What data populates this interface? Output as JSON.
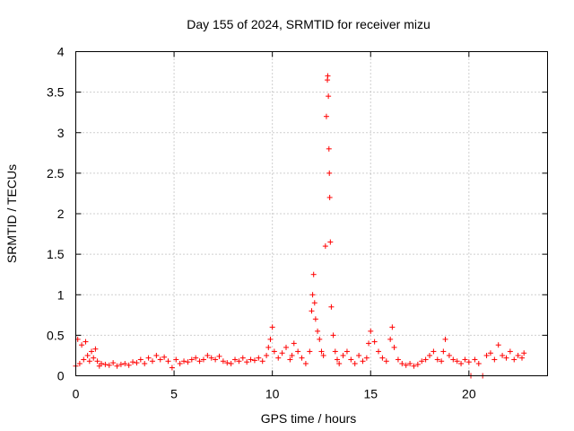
{
  "chart_data": {
    "type": "scatter",
    "title": "Day 155 of 2024, SRMTID for receiver mizu",
    "xlabel": "GPS time / hours",
    "ylabel": "SRMTID / TECUs",
    "xlim": [
      0,
      24
    ],
    "ylim": [
      0,
      4
    ],
    "x_ticks": [
      0,
      5,
      10,
      15,
      20
    ],
    "x_tick_labels": [
      "0",
      "5",
      "10",
      "15",
      "20"
    ],
    "y_ticks": [
      0,
      0.5,
      1,
      1.5,
      2,
      2.5,
      3,
      3.5,
      4
    ],
    "y_tick_labels": [
      "0",
      "0.5",
      "1",
      "1.5",
      "2",
      "2.5",
      "3",
      "3.5",
      "4"
    ],
    "grid": true,
    "marker": "+",
    "color": "#ff0000",
    "series": [
      {
        "name": "SRMTID",
        "x": [
          0.0,
          0.1,
          0.2,
          0.3,
          0.4,
          0.5,
          0.6,
          0.7,
          0.8,
          0.9,
          1.0,
          1.1,
          1.2,
          1.3,
          1.5,
          1.7,
          1.9,
          2.1,
          2.3,
          2.5,
          2.7,
          2.9,
          3.1,
          3.3,
          3.5,
          3.7,
          3.9,
          4.1,
          4.3,
          4.5,
          4.7,
          4.9,
          5.1,
          5.3,
          5.5,
          5.7,
          5.9,
          6.1,
          6.3,
          6.5,
          6.7,
          6.9,
          7.1,
          7.3,
          7.5,
          7.7,
          7.9,
          8.1,
          8.3,
          8.5,
          8.7,
          8.9,
          9.1,
          9.3,
          9.5,
          9.7,
          9.8,
          9.9,
          10.0,
          10.1,
          10.3,
          10.5,
          10.7,
          10.9,
          11.0,
          11.1,
          11.3,
          11.5,
          11.7,
          11.9,
          12.0,
          12.05,
          12.1,
          12.15,
          12.2,
          12.3,
          12.4,
          12.5,
          12.6,
          12.7,
          12.75,
          12.8,
          12.82,
          12.85,
          12.88,
          12.9,
          12.92,
          12.95,
          13.0,
          13.1,
          13.2,
          13.3,
          13.4,
          13.6,
          13.8,
          14.0,
          14.2,
          14.4,
          14.6,
          14.8,
          14.9,
          15.0,
          15.2,
          15.4,
          15.6,
          15.8,
          16.0,
          16.1,
          16.2,
          16.4,
          16.6,
          16.8,
          17.0,
          17.2,
          17.4,
          17.6,
          17.8,
          18.0,
          18.2,
          18.4,
          18.6,
          18.7,
          18.8,
          19.0,
          19.2,
          19.4,
          19.6,
          19.8,
          20.0,
          20.1,
          20.3,
          20.5,
          20.7,
          20.9,
          21.1,
          21.3,
          21.5,
          21.7,
          21.9,
          22.1,
          22.3,
          22.5,
          22.7,
          22.8
        ],
        "y": [
          0.12,
          0.45,
          0.15,
          0.38,
          0.2,
          0.42,
          0.25,
          0.18,
          0.3,
          0.22,
          0.33,
          0.18,
          0.12,
          0.15,
          0.14,
          0.13,
          0.16,
          0.12,
          0.14,
          0.15,
          0.13,
          0.17,
          0.16,
          0.2,
          0.15,
          0.22,
          0.18,
          0.25,
          0.2,
          0.23,
          0.18,
          0.1,
          0.2,
          0.15,
          0.18,
          0.17,
          0.2,
          0.22,
          0.18,
          0.2,
          0.25,
          0.22,
          0.2,
          0.24,
          0.18,
          0.16,
          0.15,
          0.2,
          0.18,
          0.22,
          0.17,
          0.2,
          0.19,
          0.22,
          0.18,
          0.25,
          0.35,
          0.45,
          0.6,
          0.3,
          0.22,
          0.28,
          0.35,
          0.2,
          0.25,
          0.4,
          0.3,
          0.22,
          0.15,
          0.3,
          0.8,
          1.0,
          1.25,
          0.9,
          0.7,
          0.55,
          0.45,
          0.3,
          0.25,
          1.6,
          3.2,
          3.65,
          3.7,
          3.45,
          2.8,
          2.5,
          2.2,
          1.65,
          0.85,
          0.5,
          0.3,
          0.2,
          0.15,
          0.25,
          0.3,
          0.2,
          0.15,
          0.25,
          0.18,
          0.22,
          0.4,
          0.55,
          0.42,
          0.3,
          0.22,
          0.18,
          0.45,
          0.6,
          0.35,
          0.2,
          0.15,
          0.13,
          0.15,
          0.12,
          0.14,
          0.18,
          0.2,
          0.25,
          0.3,
          0.2,
          0.18,
          0.3,
          0.45,
          0.25,
          0.2,
          0.18,
          0.15,
          0.2,
          0.17,
          0.0,
          0.2,
          0.15,
          0.0,
          0.25,
          0.28,
          0.2,
          0.38,
          0.25,
          0.22,
          0.3,
          0.2,
          0.25,
          0.22,
          0.28
        ]
      }
    ]
  }
}
